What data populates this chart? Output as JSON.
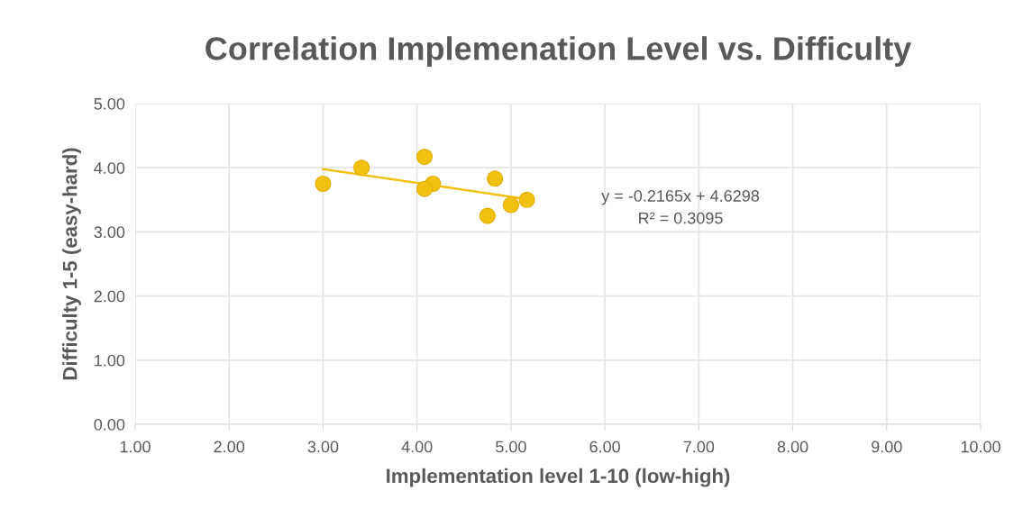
{
  "chart_data": {
    "type": "scatter",
    "title": "Correlation Implemenation Level vs. Difficulty",
    "xlabel": "Implementation level 1-10 (low-high)",
    "ylabel": "Difficulty 1-5 (easy-hard)",
    "series": [
      {
        "color": "#f2c00f",
        "x": [
          3.0,
          3.41,
          4.08,
          4.17,
          4.08,
          4.83,
          4.75,
          5.0,
          5.17
        ],
        "values": [
          3.75,
          4.0,
          4.17,
          3.75,
          3.67,
          3.83,
          3.25,
          3.42,
          3.5
        ]
      },
      {
        "type": "line",
        "marker": "none",
        "color": "#f2c00f",
        "x": [
          3.0,
          5.17
        ],
        "values": [
          3.98,
          3.51
        ]
      }
    ],
    "annotations": [
      "y = -0.2165x + 4.6298\nR² = 0.3095"
    ],
    "xlim": [
      1,
      10
    ],
    "ylim": [
      0,
      5
    ],
    "xticks": [
      {
        "value": 1,
        "label": "1.00"
      },
      {
        "value": 2,
        "label": "2.00"
      },
      {
        "value": 3,
        "label": "3.00"
      },
      {
        "value": 4,
        "label": "4.00"
      },
      {
        "value": 5,
        "label": "5.00"
      },
      {
        "value": 6,
        "label": "6.00"
      },
      {
        "value": 7,
        "label": "7.00"
      },
      {
        "value": 8,
        "label": "8.00"
      },
      {
        "value": 9,
        "label": "9.00"
      },
      {
        "value": 10,
        "label": "10.00"
      }
    ],
    "yticks": [
      {
        "value": 0,
        "label": "0.00"
      },
      {
        "value": 1,
        "label": "1.00"
      },
      {
        "value": 2,
        "label": "2.00"
      },
      {
        "value": 3,
        "label": "3.00"
      },
      {
        "value": 4,
        "label": "4.00"
      },
      {
        "value": 5,
        "label": "5.00"
      }
    ],
    "grid": true,
    "marker": "circle",
    "legend": false
  }
}
